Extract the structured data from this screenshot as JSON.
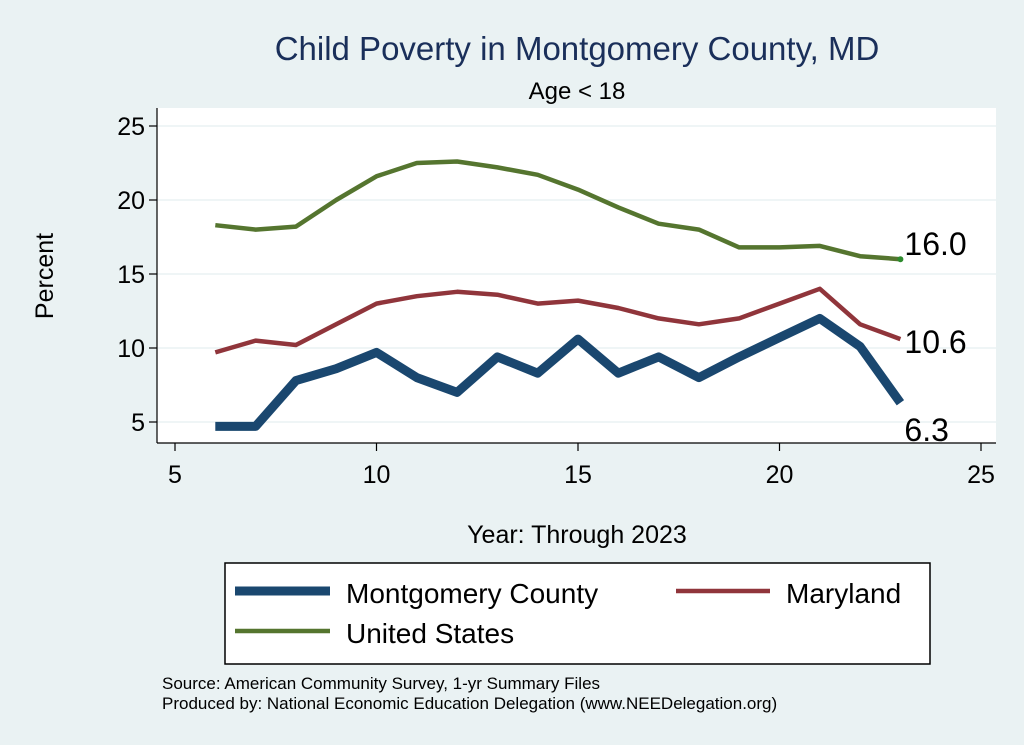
{
  "chart_data": {
    "type": "line",
    "title": "Child Poverty in Montgomery County, MD",
    "subtitle": "Age < 18",
    "xlabel": "Year: Through 2023",
    "ylabel": "Percent",
    "xlim": [
      5,
      25
    ],
    "ylim": [
      4,
      26
    ],
    "xticks": [
      5,
      10,
      15,
      20,
      25
    ],
    "yticks": [
      5,
      10,
      15,
      20,
      25
    ],
    "grid": true,
    "legend_position": "bottom",
    "x": [
      6,
      7,
      8,
      9,
      10,
      11,
      12,
      13,
      14,
      15,
      16,
      17,
      18,
      19,
      20,
      21,
      22,
      23
    ],
    "series": [
      {
        "name": "Montgomery County",
        "color": "#1a476f",
        "values": [
          4.7,
          4.7,
          7.8,
          8.6,
          9.7,
          8.0,
          7.0,
          9.4,
          8.3,
          10.6,
          8.3,
          9.4,
          8.0,
          9.4,
          10.7,
          12.0,
          10.1,
          6.3
        ],
        "end_label": "6.3"
      },
      {
        "name": "Maryland",
        "color": "#90353b",
        "values": [
          9.7,
          10.5,
          10.2,
          11.6,
          13.0,
          13.5,
          13.8,
          13.6,
          13.0,
          13.2,
          12.7,
          12.0,
          11.6,
          12.0,
          13.0,
          14.0,
          11.6,
          10.6
        ],
        "end_label": "10.6"
      },
      {
        "name": "United States",
        "color": "#55752f",
        "values": [
          18.3,
          18.0,
          18.2,
          20.0,
          21.6,
          22.5,
          22.6,
          22.2,
          21.7,
          20.7,
          19.5,
          18.4,
          18.0,
          16.8,
          16.8,
          16.9,
          16.2,
          16.0
        ],
        "end_label": "16.0"
      }
    ],
    "notes": [
      "Source: American Community Survey, 1-yr Summary Files",
      "Produced by: National Economic Education Delegation (www.NEEDelegation.org)"
    ]
  }
}
